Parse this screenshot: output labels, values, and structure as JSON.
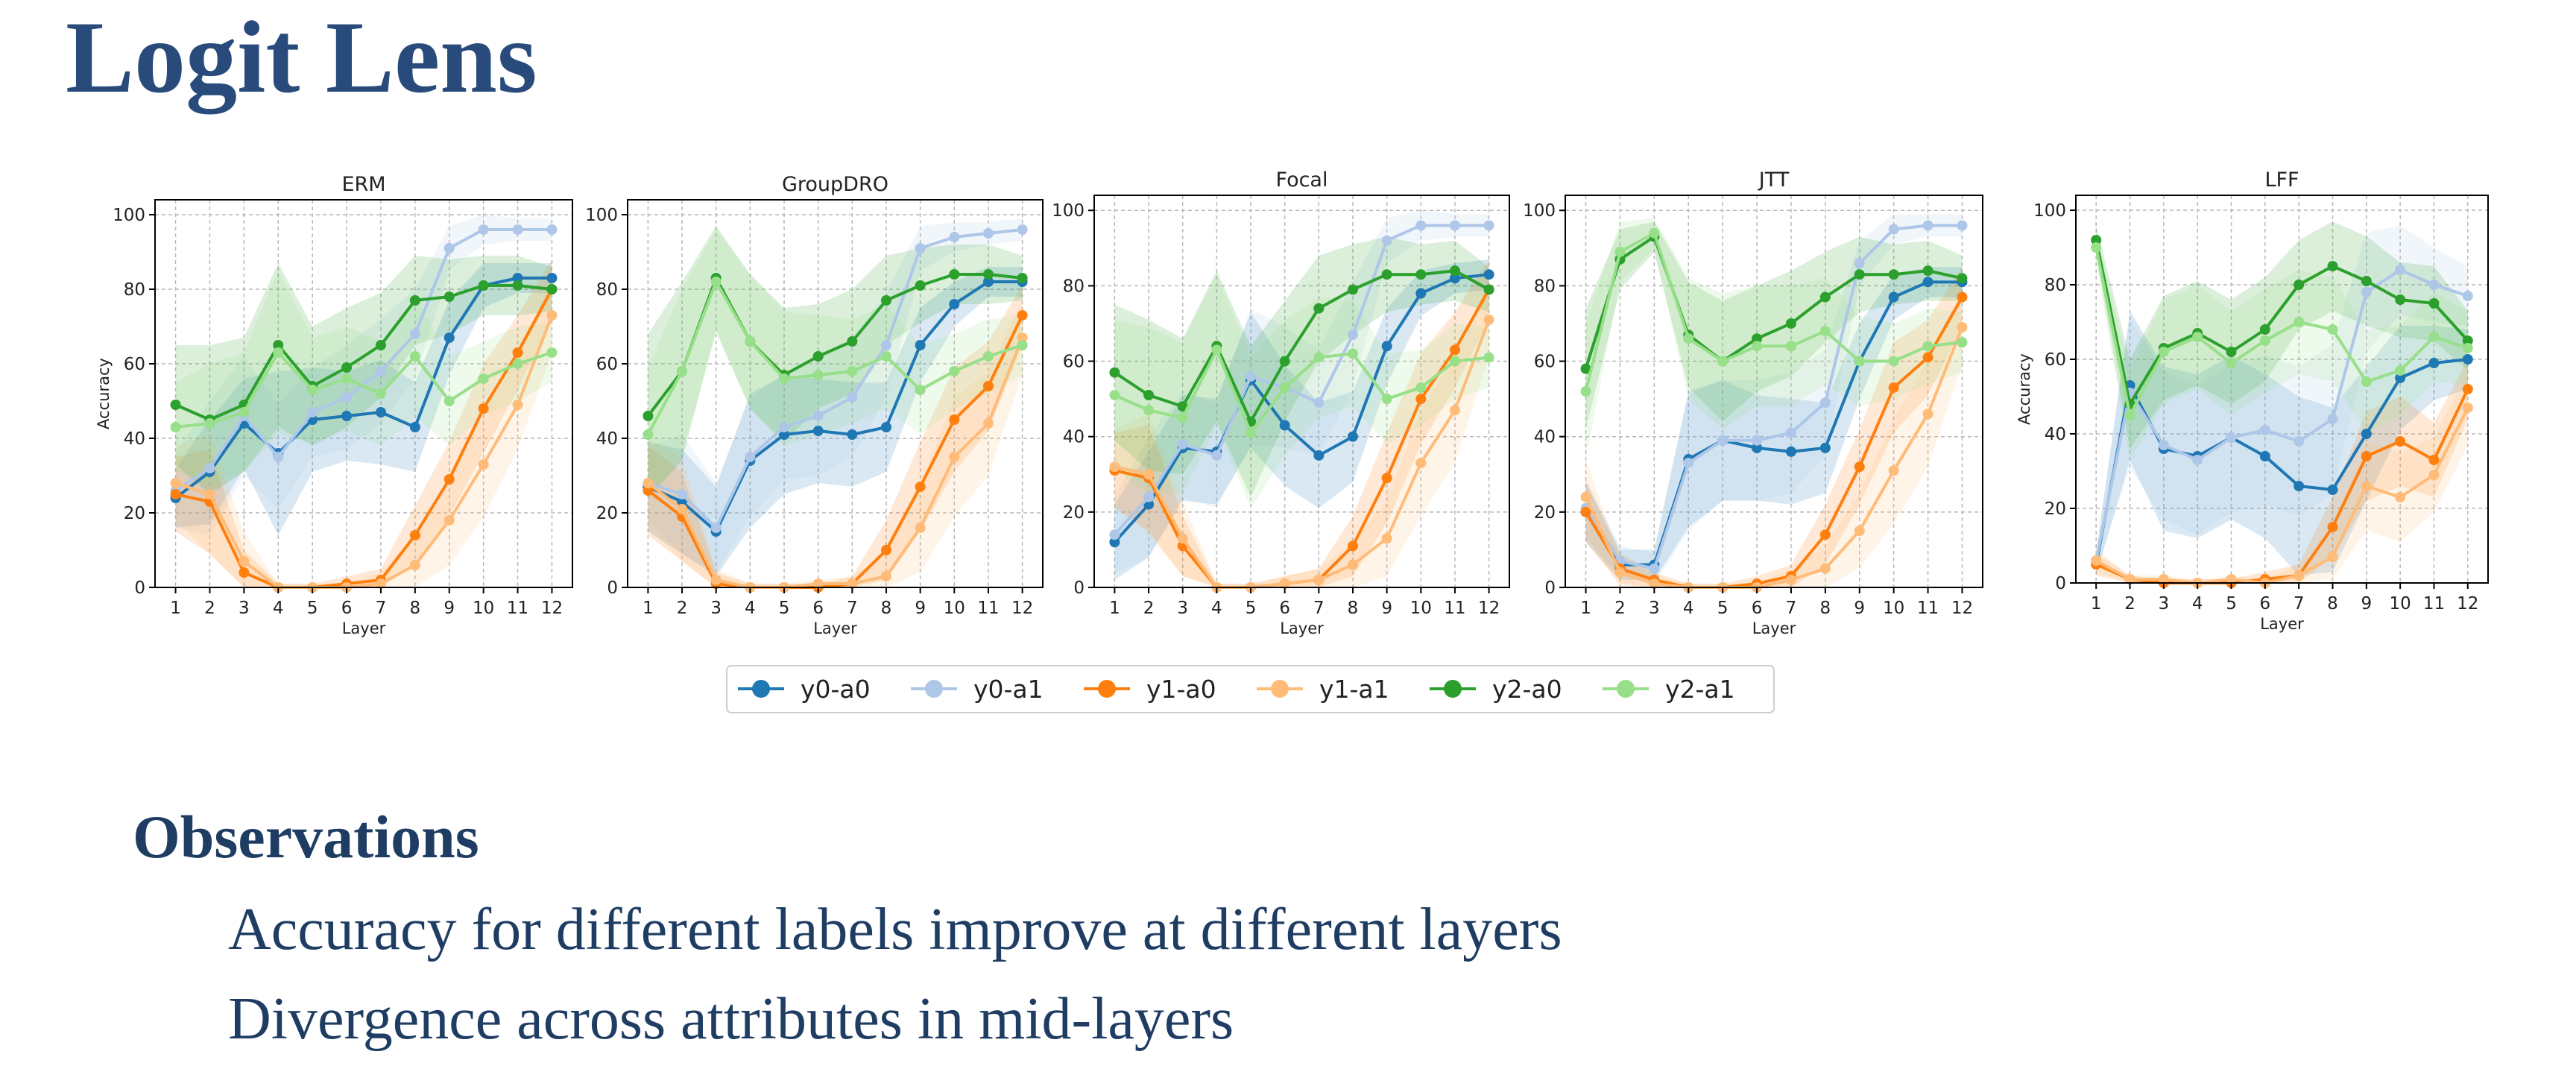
{
  "title": "Logit Lens",
  "observations": {
    "heading": "Observations",
    "items": [
      "Accuracy for different labels improve at different layers",
      "Divergence across attributes in mid-layers"
    ]
  },
  "legend": [
    {
      "label": "y0-a0",
      "color": "#1f77b4"
    },
    {
      "label": "y0-a1",
      "color": "#aec7e8"
    },
    {
      "label": "y1-a0",
      "color": "#ff7f0e"
    },
    {
      "label": "y1-a1",
      "color": "#ffbb78"
    },
    {
      "label": "y2-a0",
      "color": "#2ca02c"
    },
    {
      "label": "y2-a1",
      "color": "#98df8a"
    }
  ],
  "chart_data": [
    {
      "type": "line",
      "title": "ERM",
      "xlabel": "Layer",
      "ylabel": "Accuracy",
      "x": [
        1,
        2,
        3,
        4,
        5,
        6,
        7,
        8,
        9,
        10,
        11,
        12
      ],
      "xlim": [
        0.4,
        12.6
      ],
      "ylim": [
        0,
        104
      ],
      "yticks": [
        0,
        20,
        40,
        60,
        80,
        100
      ],
      "grid": true,
      "series": [
        {
          "name": "y0-a0",
          "values": [
            24,
            31,
            44,
            36,
            45,
            46,
            47,
            43,
            67,
            81,
            83,
            83
          ],
          "band": [
            8,
            14,
            12,
            22,
            14,
            12,
            14,
            12,
            10,
            6,
            4,
            4
          ]
        },
        {
          "name": "y0-a1",
          "values": [
            26,
            32,
            46,
            35,
            47,
            51,
            58,
            68,
            91,
            96,
            96,
            96
          ],
          "band": [
            10,
            18,
            16,
            14,
            12,
            14,
            14,
            12,
            6,
            4,
            3,
            3
          ]
        },
        {
          "name": "y1-a0",
          "values": [
            25,
            23,
            4,
            0,
            0,
            1,
            2,
            14,
            29,
            48,
            63,
            80
          ],
          "band": [
            10,
            14,
            6,
            1,
            1,
            2,
            3,
            8,
            10,
            12,
            10,
            8
          ]
        },
        {
          "name": "y1-a1",
          "values": [
            28,
            25,
            7,
            0,
            0,
            0,
            1,
            6,
            18,
            33,
            49,
            73
          ],
          "band": [
            10,
            16,
            8,
            1,
            1,
            1,
            3,
            8,
            12,
            14,
            12,
            10
          ]
        },
        {
          "name": "y2-a0",
          "values": [
            49,
            45,
            49,
            65,
            54,
            59,
            65,
            77,
            78,
            81,
            81,
            80
          ],
          "band": [
            16,
            20,
            18,
            22,
            16,
            16,
            14,
            12,
            10,
            8,
            8,
            6
          ]
        },
        {
          "name": "y2-a1",
          "values": [
            43,
            44,
            47,
            63,
            53,
            56,
            52,
            62,
            50,
            56,
            60,
            63
          ],
          "band": [
            12,
            16,
            16,
            22,
            14,
            14,
            14,
            16,
            12,
            10,
            10,
            8
          ]
        }
      ]
    },
    {
      "type": "line",
      "title": "GroupDRO",
      "xlabel": "Layer",
      "ylabel": "",
      "x": [
        1,
        2,
        3,
        4,
        5,
        6,
        7,
        8,
        9,
        10,
        11,
        12
      ],
      "xlim": [
        0.4,
        12.6
      ],
      "ylim": [
        0,
        104
      ],
      "yticks": [
        0,
        20,
        40,
        60,
        80,
        100
      ],
      "grid": true,
      "series": [
        {
          "name": "y0-a0",
          "values": [
            27,
            23,
            15,
            34,
            41,
            42,
            41,
            43,
            65,
            76,
            82,
            82
          ],
          "band": [
            12,
            14,
            12,
            18,
            16,
            14,
            14,
            12,
            10,
            6,
            4,
            4
          ]
        },
        {
          "name": "y0-a1",
          "values": [
            28,
            25,
            16,
            35,
            43,
            46,
            51,
            65,
            91,
            94,
            95,
            96
          ],
          "band": [
            10,
            16,
            12,
            16,
            14,
            16,
            16,
            14,
            6,
            4,
            3,
            3
          ]
        },
        {
          "name": "y1-a0",
          "values": [
            26,
            19,
            1,
            0,
            0,
            0,
            1,
            10,
            27,
            45,
            54,
            73
          ],
          "band": [
            12,
            12,
            3,
            1,
            1,
            1,
            2,
            8,
            12,
            14,
            12,
            8
          ]
        },
        {
          "name": "y1-a1",
          "values": [
            28,
            21,
            2,
            0,
            0,
            1,
            1,
            3,
            16,
            35,
            44,
            67
          ],
          "band": [
            12,
            14,
            3,
            1,
            1,
            1,
            2,
            6,
            12,
            16,
            14,
            10
          ]
        },
        {
          "name": "y2-a0",
          "values": [
            46,
            58,
            83,
            66,
            57,
            62,
            66,
            77,
            81,
            84,
            84,
            83
          ],
          "band": [
            22,
            24,
            14,
            18,
            18,
            14,
            14,
            12,
            10,
            8,
            8,
            6
          ]
        },
        {
          "name": "y2-a1",
          "values": [
            41,
            58,
            82,
            66,
            56,
            57,
            58,
            62,
            53,
            58,
            62,
            65
          ],
          "band": [
            18,
            22,
            14,
            18,
            18,
            16,
            14,
            14,
            12,
            10,
            10,
            8
          ]
        }
      ]
    },
    {
      "type": "line",
      "title": "Focal",
      "xlabel": "Layer",
      "ylabel": "",
      "x": [
        1,
        2,
        3,
        4,
        5,
        6,
        7,
        8,
        9,
        10,
        11,
        12
      ],
      "xlim": [
        0.4,
        12.6
      ],
      "ylim": [
        0,
        104
      ],
      "yticks": [
        0,
        20,
        40,
        60,
        80,
        100
      ],
      "grid": true,
      "series": [
        {
          "name": "y0-a0",
          "values": [
            12,
            22,
            37,
            36,
            55,
            43,
            35,
            40,
            64,
            78,
            82,
            83
          ],
          "band": [
            10,
            14,
            14,
            14,
            18,
            16,
            14,
            12,
            10,
            6,
            4,
            4
          ]
        },
        {
          "name": "y0-a1",
          "values": [
            14,
            24,
            38,
            35,
            56,
            53,
            49,
            67,
            92,
            96,
            96,
            96
          ],
          "band": [
            10,
            16,
            14,
            14,
            18,
            16,
            14,
            14,
            6,
            4,
            3,
            3
          ]
        },
        {
          "name": "y1-a0",
          "values": [
            31,
            29,
            11,
            0,
            0,
            1,
            2,
            11,
            29,
            50,
            63,
            79
          ],
          "band": [
            10,
            14,
            8,
            1,
            1,
            2,
            3,
            8,
            12,
            12,
            10,
            8
          ]
        },
        {
          "name": "y1-a1",
          "values": [
            32,
            30,
            13,
            0,
            0,
            1,
            2,
            6,
            13,
            33,
            47,
            71
          ],
          "band": [
            10,
            16,
            10,
            1,
            1,
            2,
            3,
            6,
            10,
            14,
            14,
            10
          ]
        },
        {
          "name": "y2-a0",
          "values": [
            57,
            51,
            48,
            64,
            44,
            60,
            74,
            79,
            83,
            83,
            84,
            79
          ],
          "band": [
            18,
            20,
            18,
            20,
            20,
            16,
            14,
            12,
            10,
            8,
            8,
            6
          ]
        },
        {
          "name": "y2-a1",
          "values": [
            51,
            47,
            45,
            63,
            41,
            53,
            61,
            62,
            50,
            53,
            60,
            61
          ],
          "band": [
            20,
            22,
            20,
            20,
            20,
            18,
            16,
            14,
            12,
            10,
            10,
            8
          ]
        }
      ]
    },
    {
      "type": "line",
      "title": "JTT",
      "xlabel": "Layer",
      "ylabel": "",
      "x": [
        1,
        2,
        3,
        4,
        5,
        6,
        7,
        8,
        9,
        10,
        11,
        12
      ],
      "xlim": [
        0.4,
        12.6
      ],
      "ylim": [
        0,
        104
      ],
      "yticks": [
        0,
        20,
        40,
        60,
        80,
        100
      ],
      "grid": true,
      "series": [
        {
          "name": "y0-a0",
          "values": [
            20,
            6,
            6,
            34,
            39,
            37,
            36,
            37,
            60,
            77,
            81,
            81
          ],
          "band": [
            8,
            4,
            4,
            18,
            16,
            14,
            14,
            12,
            10,
            6,
            4,
            4
          ]
        },
        {
          "name": "y0-a1",
          "values": [
            21,
            7,
            5,
            33,
            39,
            39,
            41,
            49,
            86,
            95,
            96,
            96
          ],
          "band": [
            8,
            4,
            4,
            18,
            16,
            16,
            16,
            14,
            6,
            4,
            3,
            3
          ]
        },
        {
          "name": "y1-a0",
          "values": [
            20,
            5,
            2,
            0,
            0,
            1,
            3,
            14,
            32,
            53,
            61,
            77
          ],
          "band": [
            8,
            4,
            2,
            1,
            1,
            2,
            3,
            8,
            10,
            12,
            10,
            8
          ]
        },
        {
          "name": "y1-a1",
          "values": [
            24,
            4,
            1,
            0,
            0,
            0,
            2,
            5,
            15,
            31,
            46,
            69
          ],
          "band": [
            10,
            4,
            2,
            1,
            1,
            1,
            3,
            6,
            10,
            14,
            14,
            10
          ]
        },
        {
          "name": "y2-a0",
          "values": [
            58,
            87,
            93,
            67,
            60,
            66,
            70,
            77,
            83,
            83,
            84,
            82
          ],
          "band": [
            16,
            8,
            4,
            14,
            16,
            14,
            14,
            12,
            10,
            8,
            8,
            6
          ]
        },
        {
          "name": "y2-a1",
          "values": [
            52,
            89,
            94,
            66,
            60,
            64,
            64,
            68,
            60,
            60,
            64,
            65
          ],
          "band": [
            18,
            8,
            4,
            16,
            18,
            16,
            16,
            14,
            12,
            10,
            10,
            8
          ]
        }
      ]
    },
    {
      "type": "line",
      "title": "LFF",
      "xlabel": "Layer",
      "ylabel": "Accuracy",
      "x": [
        1,
        2,
        3,
        4,
        5,
        6,
        7,
        8,
        9,
        10,
        11,
        12
      ],
      "xlim": [
        0.4,
        12.6
      ],
      "ylim": [
        0,
        104
      ],
      "yticks": [
        0,
        20,
        40,
        60,
        80,
        100
      ],
      "grid": true,
      "series": [
        {
          "name": "y0-a0",
          "values": [
            5,
            53,
            36,
            34,
            39,
            34,
            26,
            25,
            40,
            55,
            59,
            60
          ],
          "band": [
            3,
            20,
            22,
            22,
            22,
            22,
            24,
            22,
            18,
            14,
            10,
            8
          ]
        },
        {
          "name": "y0-a1",
          "values": [
            6,
            51,
            37,
            33,
            39,
            41,
            38,
            44,
            78,
            84,
            80,
            77
          ],
          "band": [
            3,
            20,
            20,
            20,
            20,
            20,
            20,
            20,
            16,
            12,
            10,
            8
          ]
        },
        {
          "name": "y1-a0",
          "values": [
            5,
            1,
            0,
            0,
            0,
            1,
            2,
            15,
            34,
            38,
            33,
            52
          ],
          "band": [
            3,
            1,
            1,
            1,
            1,
            2,
            3,
            8,
            12,
            12,
            10,
            8
          ]
        },
        {
          "name": "y1-a1",
          "values": [
            6,
            1,
            1,
            0,
            1,
            0,
            2,
            7,
            26,
            23,
            29,
            47
          ],
          "band": [
            3,
            1,
            1,
            1,
            1,
            1,
            3,
            6,
            12,
            12,
            10,
            10
          ]
        },
        {
          "name": "y2-a0",
          "values": [
            92,
            48,
            63,
            67,
            62,
            68,
            80,
            85,
            81,
            76,
            75,
            65
          ],
          "band": [
            4,
            12,
            14,
            14,
            14,
            14,
            12,
            12,
            12,
            10,
            10,
            8
          ]
        },
        {
          "name": "y2-a1",
          "values": [
            90,
            45,
            62,
            66,
            59,
            65,
            70,
            68,
            54,
            57,
            66,
            63
          ],
          "band": [
            4,
            12,
            14,
            14,
            14,
            14,
            14,
            14,
            14,
            12,
            12,
            10
          ]
        }
      ]
    }
  ]
}
